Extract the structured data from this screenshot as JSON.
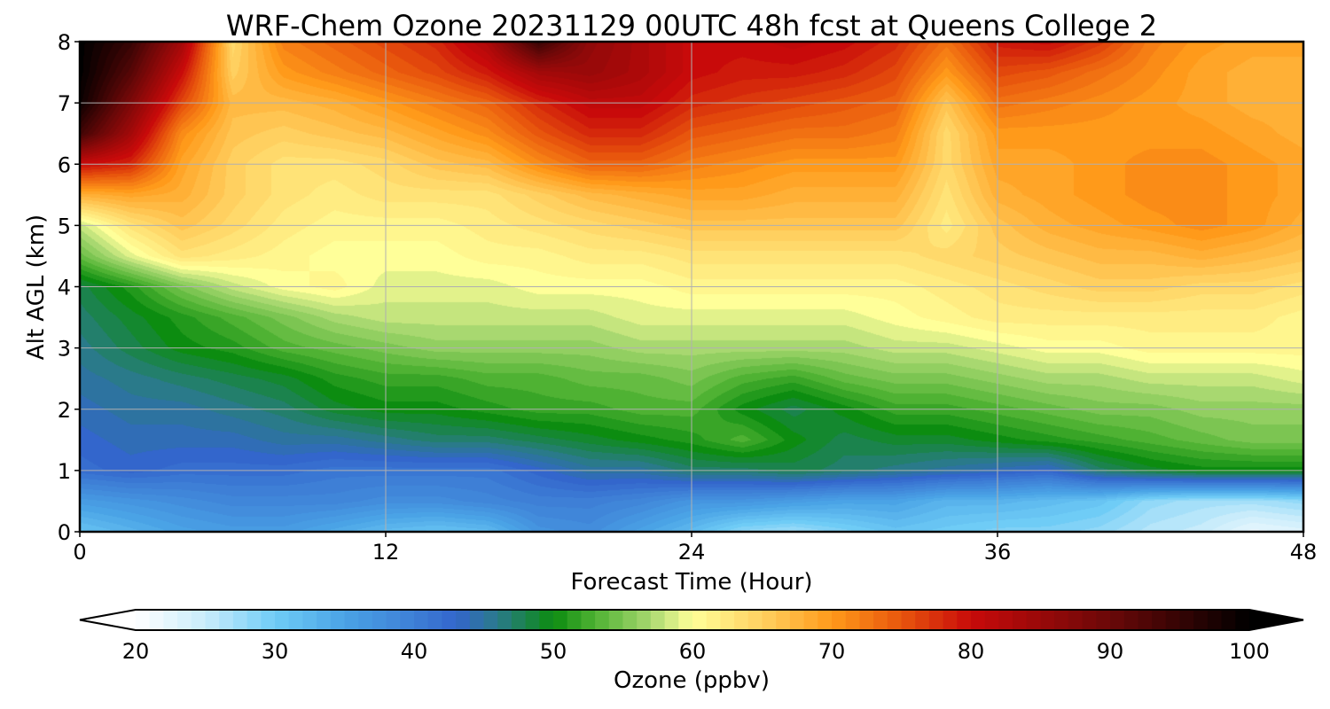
{
  "chart_data": {
    "type": "heatmap",
    "title": "WRF-Chem Ozone  20231129 00UTC 48h fcst at Queens College 2",
    "xlabel": "Forecast Time (Hour)",
    "ylabel": "Alt AGL (km)",
    "xlim": [
      0,
      48
    ],
    "ylim": [
      0,
      8
    ],
    "x_ticks": [
      0,
      12,
      24,
      36,
      48
    ],
    "y_ticks": [
      0,
      1,
      2,
      3,
      4,
      5,
      6,
      7,
      8
    ],
    "grid": true,
    "z_variable": "Ozone  (ppbv)",
    "grid_x_hours": [
      0,
      2,
      4,
      6,
      8,
      10,
      12,
      14,
      16,
      18,
      20,
      22,
      24,
      26,
      28,
      30,
      32,
      34,
      36,
      38,
      40,
      42,
      44,
      46,
      48
    ],
    "grid_y_km": [
      0,
      0.5,
      1,
      1.5,
      2,
      2.5,
      3,
      3.5,
      4,
      4.5,
      5,
      5.5,
      6,
      6.5,
      7,
      7.5,
      8
    ],
    "z_ppbv": [
      [
        31,
        33,
        35,
        36,
        36,
        34,
        32,
        31,
        32,
        37,
        38,
        35,
        32,
        28,
        27,
        29,
        31,
        30,
        29,
        29,
        28,
        26,
        25,
        22,
        23
      ],
      [
        36,
        37,
        38,
        39,
        39,
        39,
        38,
        38,
        39,
        40,
        40,
        39,
        37,
        37,
        36,
        35,
        35,
        33,
        33,
        32,
        31,
        28,
        27,
        27,
        28
      ],
      [
        42,
        43,
        42,
        42,
        42,
        41,
        41,
        41,
        41,
        43,
        45,
        45,
        47,
        47,
        48,
        47,
        46,
        45,
        44,
        43,
        47,
        49,
        50,
        50,
        50
      ],
      [
        43,
        44,
        44,
        44,
        45,
        45,
        46,
        47,
        47,
        48,
        49,
        50,
        51,
        53,
        50,
        48,
        49,
        49,
        50,
        51,
        52,
        53,
        54,
        55,
        55
      ],
      [
        44,
        45,
        45,
        46,
        47,
        49,
        50,
        50,
        51,
        52,
        52,
        53,
        53,
        50,
        48,
        50,
        52,
        52,
        53,
        54,
        55,
        55,
        56,
        56,
        56
      ],
      [
        45,
        46,
        47,
        48,
        49,
        51,
        52,
        52,
        53,
        53,
        54,
        54,
        55,
        53,
        52,
        54,
        55,
        55,
        56,
        57,
        57,
        58,
        58,
        58,
        59
      ],
      [
        46,
        48,
        50,
        51,
        53,
        54,
        55,
        56,
        56,
        56,
        56,
        57,
        57,
        57,
        57,
        57,
        58,
        58,
        59,
        60,
        60,
        61,
        61,
        61,
        61
      ],
      [
        47,
        49,
        51,
        53,
        55,
        57,
        58,
        58,
        58,
        58,
        58,
        59,
        59,
        59,
        59,
        59,
        60,
        61,
        62,
        62,
        62,
        62,
        62,
        62,
        61
      ],
      [
        48,
        51,
        55,
        58,
        60,
        61,
        59,
        59,
        59,
        60,
        60,
        60,
        61,
        61,
        61,
        61,
        61,
        62,
        63,
        64,
        65,
        65,
        64,
        64,
        63
      ],
      [
        54,
        59,
        63,
        62,
        61,
        60,
        60,
        60,
        61,
        61,
        62,
        62,
        63,
        63,
        63,
        63,
        63,
        64,
        65,
        66,
        67,
        67,
        68,
        67,
        66
      ],
      [
        58,
        63,
        66,
        64,
        62,
        61,
        61,
        61,
        62,
        63,
        64,
        65,
        66,
        66,
        66,
        66,
        66,
        62,
        66,
        68,
        69,
        70,
        71,
        70,
        68
      ],
      [
        68,
        69,
        68,
        65,
        63,
        62,
        63,
        63,
        63,
        65,
        67,
        68,
        69,
        69,
        68,
        68,
        68,
        63,
        68,
        69,
        70,
        71,
        71,
        70,
        69
      ],
      [
        80,
        78,
        69,
        65,
        63,
        63,
        64,
        66,
        67,
        71,
        74,
        74,
        72,
        71,
        70,
        70,
        70,
        64,
        69,
        69,
        70,
        71,
        71,
        70,
        69
      ],
      [
        94,
        84,
        71,
        66,
        65,
        66,
        67,
        69,
        71,
        75,
        78,
        78,
        75,
        74,
        73,
        73,
        72,
        64,
        70,
        70,
        70,
        70,
        70,
        69,
        68
      ],
      [
        99,
        88,
        76,
        67,
        67,
        68,
        70,
        72,
        74,
        78,
        81,
        81,
        78,
        77,
        76,
        75,
        74,
        66,
        73,
        72,
        71,
        70,
        69,
        68,
        68
      ],
      [
        100,
        92,
        80,
        65,
        70,
        72,
        74,
        76,
        79,
        84,
        85,
        83,
        80,
        79,
        79,
        78,
        76,
        70,
        76,
        75,
        73,
        71,
        69,
        68,
        68
      ],
      [
        100,
        95,
        84,
        64,
        72,
        74,
        76,
        78,
        83,
        95,
        86,
        83,
        80,
        80,
        81,
        80,
        78,
        73,
        79,
        80,
        77,
        72,
        70,
        69,
        69
      ]
    ]
  },
  "colorbar": {
    "label": "Ozone  (ppbv)",
    "min": 20,
    "max": 100,
    "ticks": [
      20,
      30,
      40,
      50,
      60,
      70,
      80,
      90,
      100
    ],
    "extend": "both",
    "stops": [
      {
        "v": 20,
        "c": "#ffffff"
      },
      {
        "v": 25,
        "c": "#c9ecfb"
      },
      {
        "v": 30,
        "c": "#6fccf6"
      },
      {
        "v": 35,
        "c": "#4aa3e6"
      },
      {
        "v": 40,
        "c": "#3e7fd6"
      },
      {
        "v": 43,
        "c": "#3366cc"
      },
      {
        "v": 46,
        "c": "#2a7a8a"
      },
      {
        "v": 50,
        "c": "#0c8c10"
      },
      {
        "v": 53,
        "c": "#4fb233"
      },
      {
        "v": 57,
        "c": "#a8d870"
      },
      {
        "v": 60,
        "c": "#ffff99"
      },
      {
        "v": 65,
        "c": "#ffd060"
      },
      {
        "v": 70,
        "c": "#ff9a1a"
      },
      {
        "v": 75,
        "c": "#e8560d"
      },
      {
        "v": 80,
        "c": "#c80a0a"
      },
      {
        "v": 90,
        "c": "#6a0808"
      },
      {
        "v": 100,
        "c": "#000000"
      }
    ]
  }
}
